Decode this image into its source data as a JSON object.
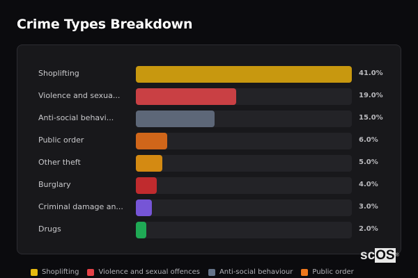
{
  "title": "Crime Types Breakdown",
  "rows": [
    {
      "label": "Shoplifting",
      "value": "41.0%",
      "color": "#c8980f",
      "pct": 41.0
    },
    {
      "label": "Violence and sexua...",
      "value": "19.0%",
      "color": "#c94044",
      "pct": 19.0
    },
    {
      "label": "Anti-social behavi...",
      "value": "15.0%",
      "color": "#5d6778",
      "pct": 15.0
    },
    {
      "label": "Public order",
      "value": "6.0%",
      "color": "#d0661a",
      "pct": 6.0
    },
    {
      "label": "Other theft",
      "value": "5.0%",
      "color": "#d48a12",
      "pct": 5.0
    },
    {
      "label": "Burglary",
      "value": "4.0%",
      "color": "#c02b2e",
      "pct": 4.0
    },
    {
      "label": "Criminal damage an...",
      "value": "3.0%",
      "color": "#7655d6",
      "pct": 3.0
    },
    {
      "label": "Drugs",
      "value": "2.0%",
      "color": "#1fa955",
      "pct": 2.0
    }
  ],
  "legend": [
    {
      "label": "Shoplifting",
      "color": "#e8b90f"
    },
    {
      "label": "Violence and sexual offences",
      "color": "#e64147"
    },
    {
      "label": "Anti-social behaviour",
      "color": "#66748a"
    },
    {
      "label": "Public order",
      "color": "#f0781c"
    }
  ],
  "logo": {
    "prefix": "sc",
    "highlight": "OS",
    "mark": "®"
  },
  "chart_data": {
    "type": "bar",
    "orientation": "horizontal",
    "title": "Crime Types Breakdown",
    "categories": [
      "Shoplifting",
      "Violence and sexual offences",
      "Anti-social behaviour",
      "Public order",
      "Other theft",
      "Burglary",
      "Criminal damage and arson",
      "Drugs"
    ],
    "values": [
      41.0,
      19.0,
      15.0,
      6.0,
      5.0,
      4.0,
      3.0,
      2.0
    ],
    "value_labels": [
      "41.0%",
      "19.0%",
      "15.0%",
      "6.0%",
      "5.0%",
      "4.0%",
      "3.0%",
      "2.0%"
    ],
    "xlabel": "",
    "ylabel": "",
    "xlim": [
      0,
      41
    ],
    "grid": false,
    "legend_position": "bottom",
    "legend": [
      "Shoplifting",
      "Violence and sexual offences",
      "Anti-social behaviour",
      "Public order"
    ]
  }
}
